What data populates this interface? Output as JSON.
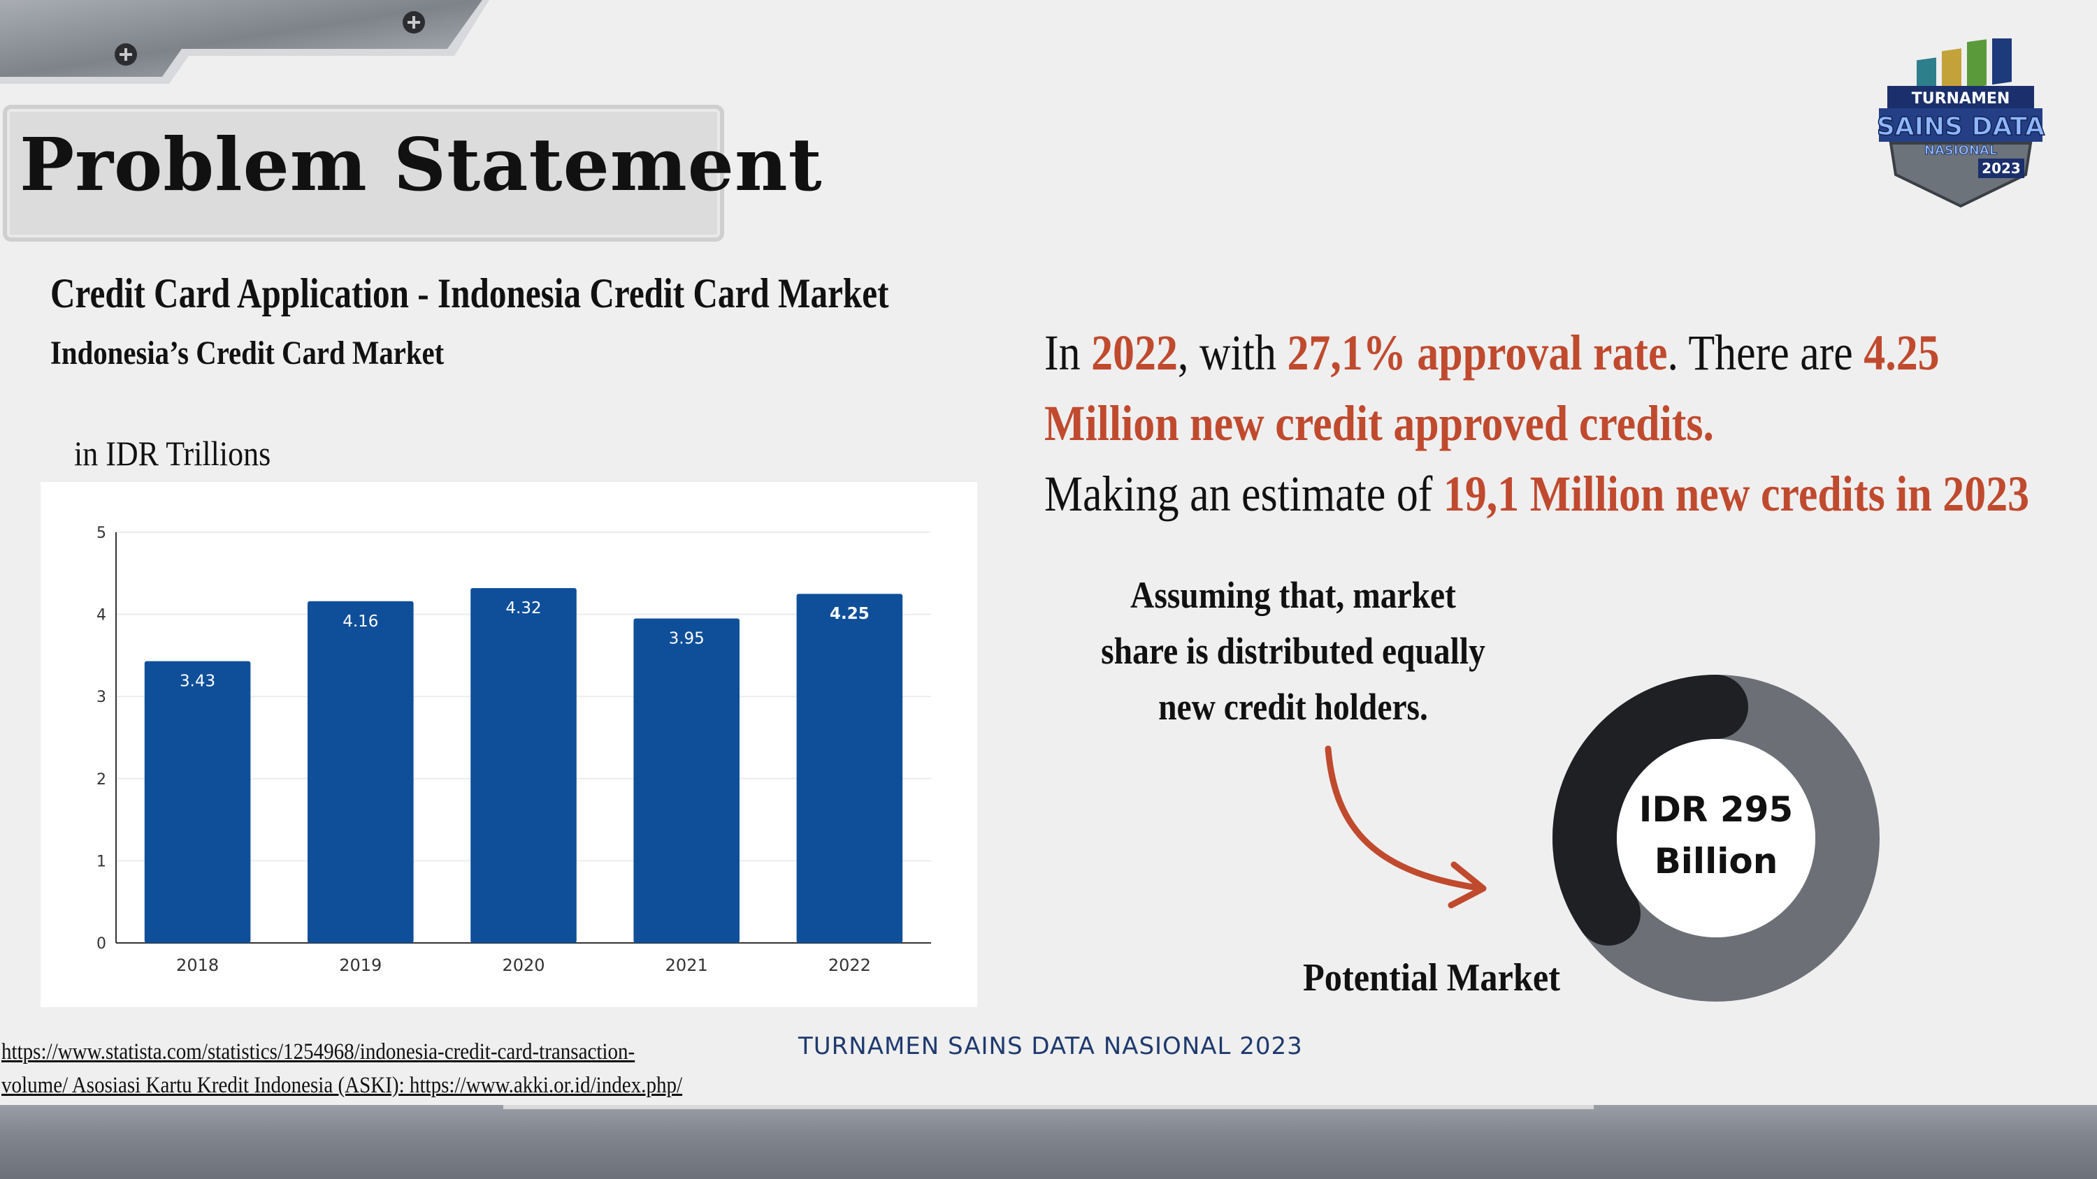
{
  "slide": {
    "title": "Problem Statement",
    "heading": "Credit Card Application - Indonesia Credit Card Market",
    "subheading": "Indonesia’s Credit Card Market",
    "unit_label": "in IDR Trillions"
  },
  "logo": {
    "line1": "TURNAMEN",
    "line2": "SAINS DATA",
    "line3": "NASIONAL",
    "year": "2023"
  },
  "chart_data": {
    "type": "bar",
    "categories": [
      "2018",
      "2019",
      "2020",
      "2021",
      "2022"
    ],
    "values": [
      3.43,
      4.16,
      4.32,
      3.95,
      4.25
    ],
    "data_labels": [
      "3.43",
      "4.16",
      "4.32",
      "3.95",
      "4.25"
    ],
    "ylim": [
      0,
      5
    ],
    "yticks": [
      "0",
      "1",
      "2",
      "3",
      "4",
      "5"
    ],
    "grid": true,
    "bar_color": "#0f4f9a"
  },
  "statement": {
    "p1": "In ",
    "year": "2022",
    "p2": ", with ",
    "approval": "27,1% approval rate",
    "p3": ". There are ",
    "new_approved": "4.25 Million new credit approved credits.",
    "p4": "Making an estimate of ",
    "estimate": "19,1 Million new credits in 2023"
  },
  "assumption": {
    "line1": "Assuming that, market",
    "line2": "share is distributed equally",
    "line3": "new credit holders."
  },
  "donut": {
    "line1": "IDR 295",
    "line2": "Billion",
    "caption": "Potential Market",
    "dark_color": "#1e2024",
    "light_color": "#6c6f75"
  },
  "source": {
    "line1": "https://www.statista.com/statistics/1254968/indonesia-credit-card-transaction-",
    "line2": "volume/ Asosiasi Kartu Kredit Indonesia (ASKI): https://www.akki.or.id/index.php/"
  },
  "footer": {
    "label": "TURNAMEN SAINS DATA NASIONAL 2023"
  },
  "colors": {
    "accent": "#c04a2e",
    "footer_text": "#1e3a6e"
  }
}
